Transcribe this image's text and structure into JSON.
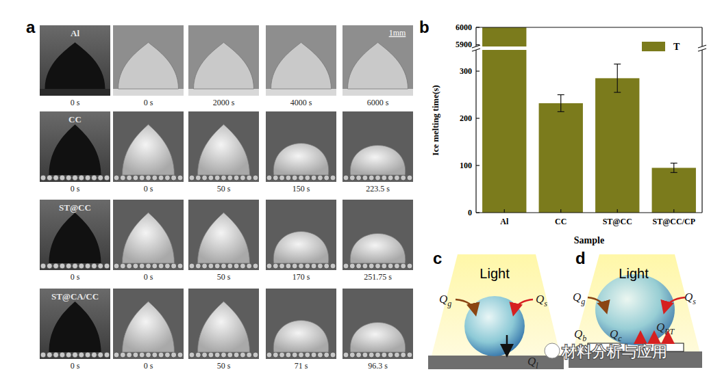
{
  "figure": {
    "panel_labels": [
      "a",
      "b",
      "c",
      "d"
    ],
    "watermark": "材料分析与应用"
  },
  "panel_a": {
    "scale_bar": "1mm",
    "rows": [
      {
        "label": "Al",
        "times": [
          "0 s",
          "0 s",
          "2000 s",
          "4000 s",
          "6000 s"
        ]
      },
      {
        "label": "CC",
        "times": [
          "0 s",
          "0 s",
          "50 s",
          "150 s",
          "223.5 s"
        ]
      },
      {
        "label": "ST@CC",
        "times": [
          "0 s",
          "0 s",
          "50 s",
          "170 s",
          "251.75 s"
        ]
      },
      {
        "label": "ST@CA/CC",
        "times": [
          "0 s",
          "0 s",
          "50 s",
          "71 s",
          "96.3 s"
        ]
      }
    ]
  },
  "chart_data": {
    "type": "bar",
    "categories": [
      "Al",
      "CC",
      "ST@CC",
      "ST@CC/CP"
    ],
    "series": [
      {
        "name": "T",
        "color": "#7b7b1c",
        "values": [
          6000,
          232,
          285,
          95
        ],
        "errors": [
          null,
          18,
          30,
          10
        ]
      }
    ],
    "ylim": [
      0,
      6000
    ],
    "ybreak": [
      345,
      5890
    ],
    "yticks": [
      0,
      100,
      200,
      300,
      5900,
      6000
    ],
    "xlabel": "Sample",
    "ylabel": "Ice melting time(s)",
    "legend": "upper right"
  },
  "panel_c": {
    "light": "Light",
    "labels": [
      {
        "text": "Q",
        "sub": "g"
      },
      {
        "text": "Q",
        "sub": "s"
      },
      {
        "text": "Q",
        "sub": "l"
      }
    ]
  },
  "panel_d": {
    "light": "Light",
    "labels": [
      {
        "text": "Q",
        "sub": "g"
      },
      {
        "text": "Q",
        "sub": "s"
      },
      {
        "text": "Q",
        "sub": "b"
      },
      {
        "text": "Q",
        "sub": "c"
      },
      {
        "text": "Q",
        "sub": "PT"
      }
    ]
  }
}
